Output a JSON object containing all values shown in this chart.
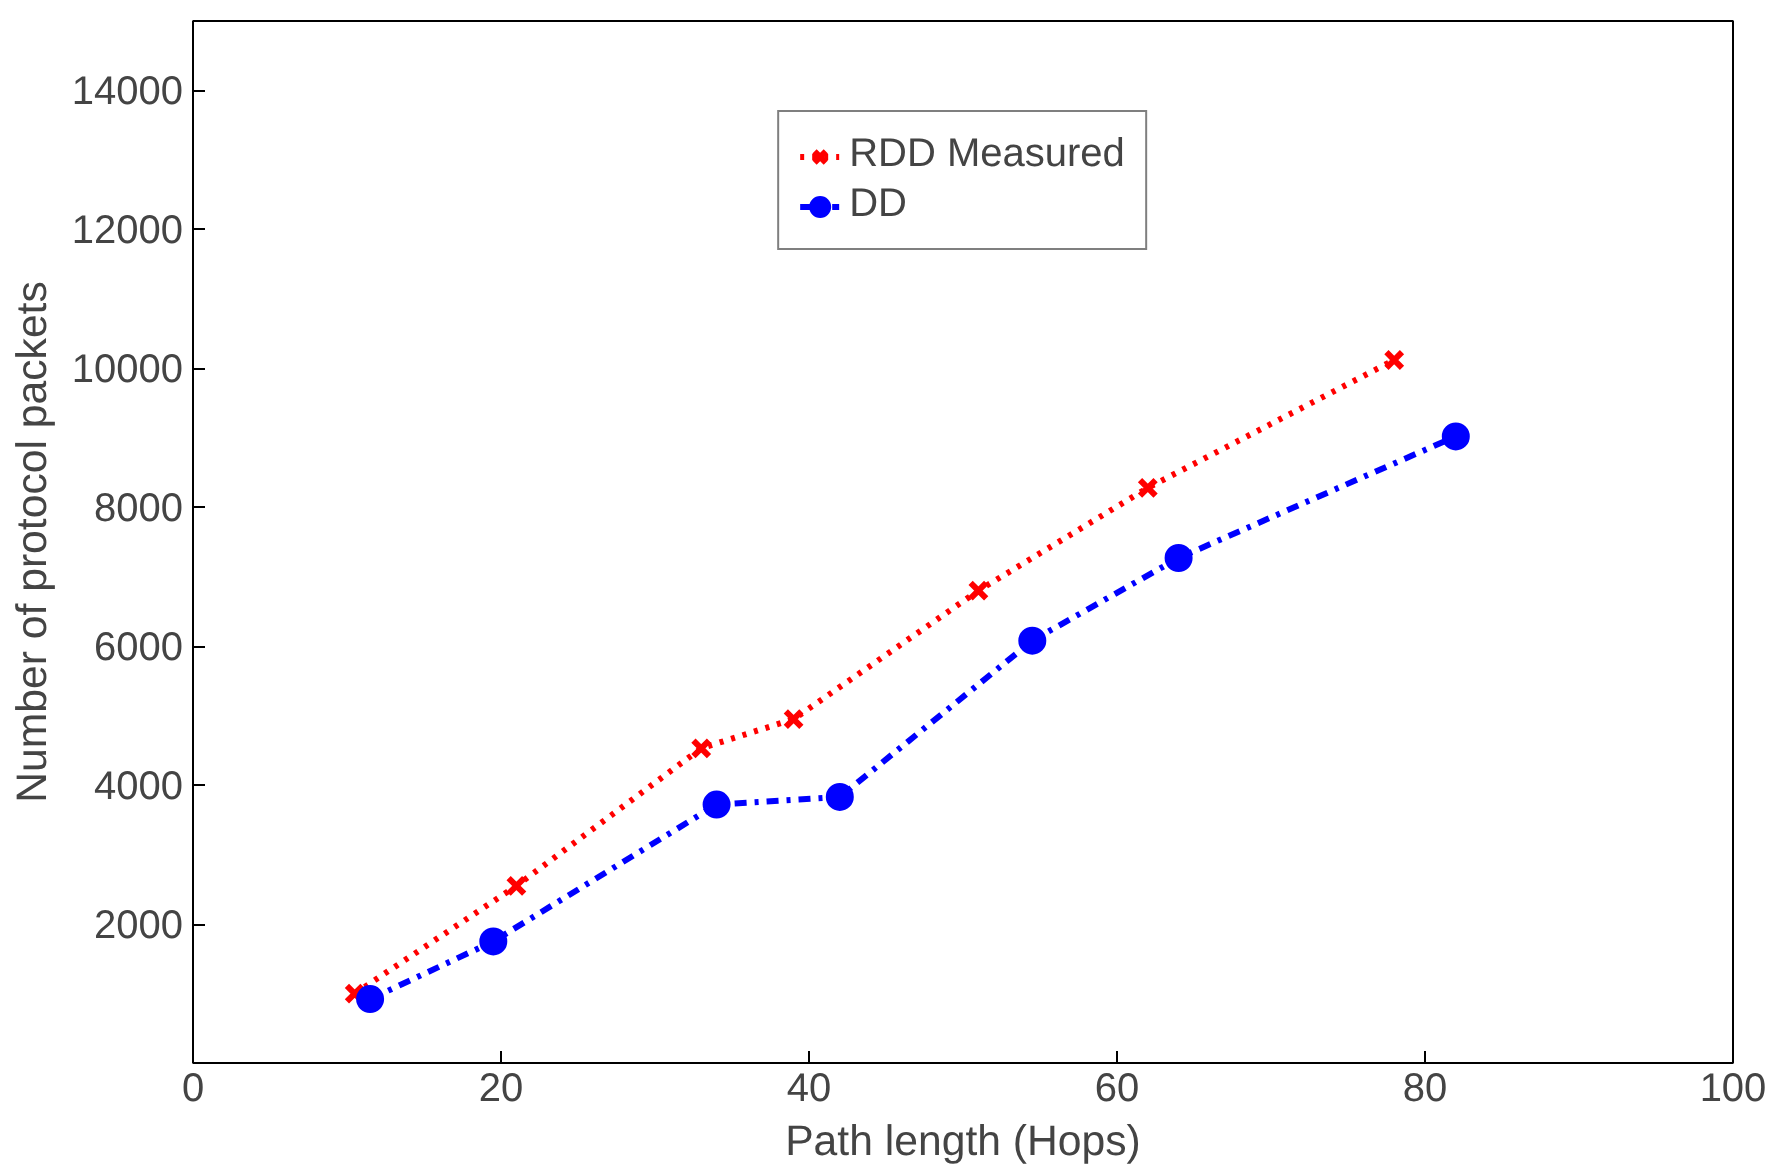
{
  "chart_data": {
    "type": "line",
    "xlabel": "Path length (Hops)",
    "ylabel": "Number of protocol packets",
    "xlim": [
      0,
      100
    ],
    "xticks": [
      0,
      20,
      40,
      60,
      80,
      100
    ],
    "ylim": [
      0,
      15000
    ],
    "yticks": [
      2000,
      4000,
      6000,
      8000,
      10000,
      12000,
      14000
    ],
    "grid": false,
    "legend": "top",
    "series": [
      {
        "name": "RDD Measured",
        "color": "#ff0000",
        "marker": "cross",
        "line_style": "dotted",
        "x": [
          10.5,
          21,
          33,
          39,
          51,
          62,
          78
        ],
        "values": [
          1000,
          2550,
          4530,
          4950,
          6800,
          8280,
          10120
        ]
      },
      {
        "name": "DD",
        "color": "#0000ff",
        "marker": "circle",
        "line_style": "dashdot",
        "x": [
          11.5,
          19.5,
          34,
          42,
          54.5,
          64,
          82
        ],
        "values": [
          920,
          1750,
          3720,
          3830,
          6080,
          7270,
          9020
        ]
      }
    ]
  }
}
